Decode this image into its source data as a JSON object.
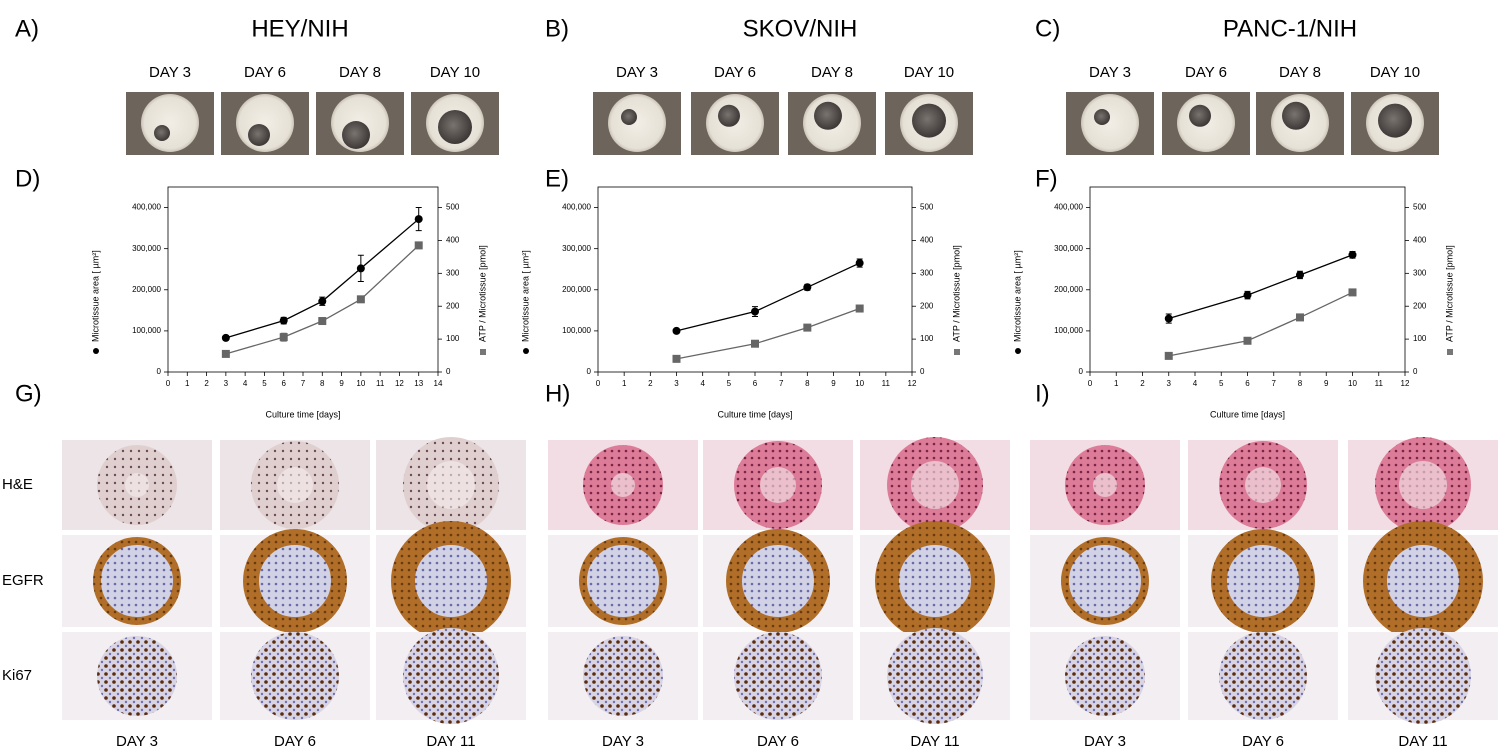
{
  "columns": [
    {
      "label": "A)",
      "title": "HEY/NIH",
      "days": [
        "DAY 3",
        "DAY 6",
        "DAY 8",
        "DAY 10"
      ],
      "chart_label": "D)",
      "histology_label": "G)",
      "histology_days": [
        "DAY 3",
        "DAY 6",
        "DAY 11"
      ]
    },
    {
      "label": "B)",
      "title": "SKOV/NIH",
      "days": [
        "DAY 3",
        "DAY 6",
        "DAY 8",
        "DAY 10"
      ],
      "chart_label": "E)",
      "histology_label": "H)",
      "histology_days": [
        "DAY 3",
        "DAY 6",
        "DAY 11"
      ]
    },
    {
      "label": "C)",
      "title": "PANC-1/NIH",
      "days": [
        "DAY 3",
        "DAY 6",
        "DAY 8",
        "DAY 10"
      ],
      "chart_label": "F)",
      "histology_label": "I)",
      "histology_days": [
        "DAY 3",
        "DAY 6",
        "DAY 11"
      ]
    }
  ],
  "stains": [
    "H&E",
    "EGFR",
    "Ki67"
  ],
  "chart_data": [
    {
      "type": "line",
      "x_label": "Culture time [days]",
      "y_label": "Microtissue area [ µm²]",
      "y2_label": "ATP / Microtissue [pmol]",
      "x": [
        3,
        6,
        8,
        10,
        13
      ],
      "xlim": [
        0,
        14
      ],
      "xticks": [
        0,
        1,
        2,
        3,
        4,
        5,
        6,
        7,
        8,
        9,
        10,
        11,
        12,
        13,
        14
      ],
      "ylim": [
        0,
        450000
      ],
      "yticks": [
        0,
        {
          "value": 100000,
          "label": "100,000"
        },
        {
          "value": 200000,
          "label": "200,000"
        },
        {
          "value": 300000,
          "label": "300,000"
        },
        {
          "value": 400000,
          "label": "400,000"
        }
      ],
      "y2lim": [
        0,
        562.5
      ],
      "y2ticks": [
        0,
        100,
        200,
        300,
        400,
        500
      ],
      "series": [
        {
          "color": "#000000",
          "marker": "circle",
          "values": [
            83000,
            125000,
            172000,
            252000,
            372000
          ],
          "errors": [
            5000,
            8000,
            10000,
            32000,
            28000
          ]
        },
        {
          "color": "#666666",
          "marker": "square",
          "axis": "y2",
          "values": [
            55,
            106,
            155,
            221,
            385
          ],
          "errors": [
            5,
            12,
            8,
            4,
            10
          ]
        }
      ]
    },
    {
      "type": "line",
      "x_label": "Culture time [days]",
      "y_label": "Microtissue area [ µm²]",
      "y2_label": "ATP / Microtissue [pmol]",
      "x": [
        3,
        6,
        8,
        10
      ],
      "xlim": [
        0,
        12
      ],
      "xticks": [
        0,
        1,
        2,
        3,
        4,
        5,
        6,
        7,
        8,
        9,
        10,
        11,
        12
      ],
      "ylim": [
        0,
        450000
      ],
      "yticks": [
        0,
        {
          "value": 100000,
          "label": "100,000"
        },
        {
          "value": 200000,
          "label": "200,000"
        },
        {
          "value": 300000,
          "label": "300,000"
        },
        {
          "value": 400000,
          "label": "400,000"
        }
      ],
      "y2lim": [
        0,
        562.5
      ],
      "y2ticks": [
        0,
        100,
        200,
        300,
        400,
        500
      ],
      "series": [
        {
          "color": "#000000",
          "marker": "circle",
          "values": [
            100000,
            147000,
            206000,
            265000
          ],
          "errors": [
            4000,
            12000,
            7000,
            10000
          ]
        },
        {
          "color": "#666666",
          "marker": "square",
          "axis": "y2",
          "values": [
            40,
            86,
            135,
            193
          ],
          "errors": [
            3,
            4,
            4,
            4
          ]
        }
      ]
    },
    {
      "type": "line",
      "x_label": "Culture time [days]",
      "y_label": "Microtissue area [ µm²]",
      "y2_label": "ATP / Microtissue [pmol]",
      "x": [
        3,
        6,
        8,
        10
      ],
      "xlim": [
        0,
        12
      ],
      "xticks": [
        0,
        1,
        2,
        3,
        4,
        5,
        6,
        7,
        8,
        9,
        10,
        11,
        12
      ],
      "ylim": [
        0,
        450000
      ],
      "yticks": [
        0,
        {
          "value": 100000,
          "label": "100,000"
        },
        {
          "value": 200000,
          "label": "200,000"
        },
        {
          "value": 300000,
          "label": "300,000"
        },
        {
          "value": 400000,
          "label": "400,000"
        }
      ],
      "y2lim": [
        0,
        562.5
      ],
      "y2ticks": [
        0,
        100,
        200,
        300,
        400,
        500
      ],
      "series": [
        {
          "color": "#000000",
          "marker": "circle",
          "values": [
            130000,
            187000,
            236000,
            285000
          ],
          "errors": [
            11000,
            9000,
            9000,
            8000
          ]
        },
        {
          "color": "#666666",
          "marker": "square",
          "axis": "y2",
          "values": [
            49,
            95,
            166,
            242
          ],
          "errors": [
            3,
            4,
            4,
            8
          ]
        }
      ]
    }
  ]
}
